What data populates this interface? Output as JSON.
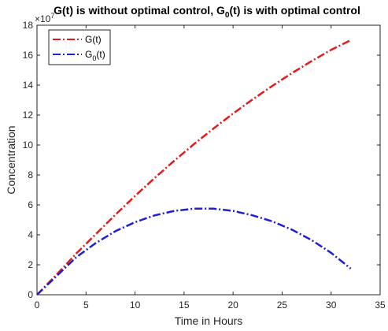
{
  "chart_data": {
    "type": "line",
    "title": "G(t) is without optimal control, G",
    "title_subscript": "0",
    "title_suffix": "(t) is with optimal control",
    "xlabel": "Time in Hours",
    "ylabel": "Concentration",
    "y_exponent_base": "×10",
    "y_exponent": "7",
    "xlim": [
      0,
      35
    ],
    "ylim": [
      0,
      18
    ],
    "x_ticks": [
      0,
      5,
      10,
      15,
      20,
      25,
      30,
      35
    ],
    "y_ticks": [
      0,
      2,
      4,
      6,
      8,
      10,
      12,
      14,
      16,
      18
    ],
    "grid": false,
    "legend_position": "top-left",
    "series": [
      {
        "name": "G(t)",
        "color": "#e41a1c",
        "style": "dashdot",
        "x": [
          0,
          2,
          4,
          6,
          8,
          10,
          12,
          14,
          16,
          18,
          20,
          22,
          24,
          26,
          28,
          30,
          32
        ],
        "y": [
          0,
          1.35,
          2.75,
          4.05,
          5.35,
          6.6,
          7.8,
          8.95,
          10.05,
          11.1,
          12.1,
          13.05,
          13.95,
          14.8,
          15.6,
          16.35,
          17.0
        ]
      },
      {
        "name": "G",
        "name_subscript": "0",
        "name_suffix": "(t)",
        "color": "#1f1fd6",
        "style": "dashdot",
        "x": [
          0,
          2,
          4,
          6,
          8,
          10,
          12,
          14,
          16,
          18,
          20,
          22,
          24,
          26,
          28,
          30,
          32
        ],
        "y": [
          0,
          1.25,
          2.5,
          3.45,
          4.25,
          4.85,
          5.3,
          5.6,
          5.75,
          5.75,
          5.6,
          5.3,
          4.9,
          4.35,
          3.65,
          2.8,
          1.75
        ]
      }
    ]
  }
}
